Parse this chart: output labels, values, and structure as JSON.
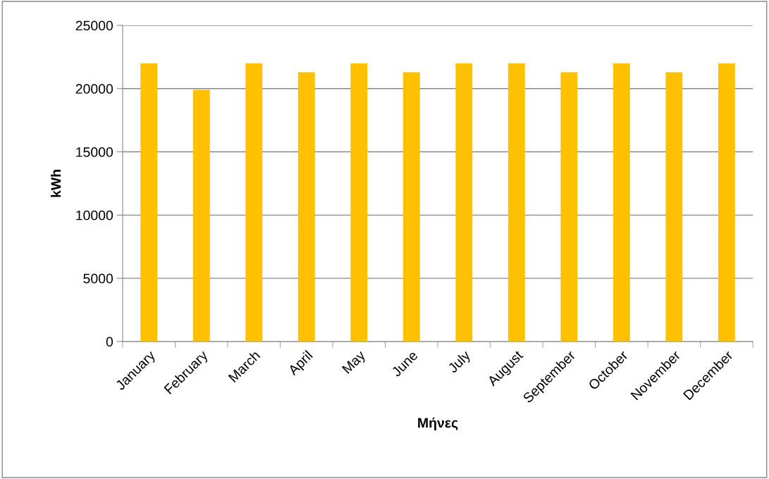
{
  "chart_data": {
    "type": "bar",
    "xlabel": "Μήνες",
    "ylabel": "kWh",
    "categories": [
      "January",
      "February",
      "March",
      "April",
      "May",
      "June",
      "July",
      "August",
      "September",
      "October",
      "November",
      "December"
    ],
    "values": [
      22000,
      19900,
      22000,
      21300,
      22000,
      21300,
      22000,
      22000,
      21300,
      22000,
      21300,
      22000
    ],
    "color": "#ffc000",
    "ylim": [
      0,
      25000
    ],
    "yticks": [
      0,
      5000,
      10000,
      15000,
      20000,
      25000
    ],
    "grid": "y"
  }
}
